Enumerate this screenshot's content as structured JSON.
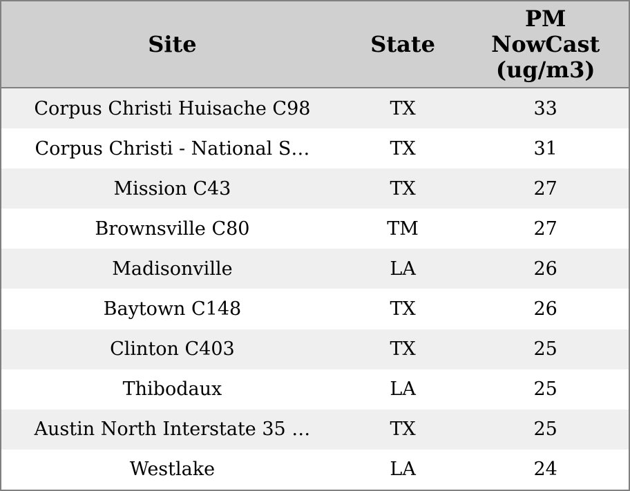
{
  "colors": {
    "header_bg": "#d0d0d0",
    "row_alt_bg": "#efefef",
    "row_bg": "#ffffff",
    "border": "#808080",
    "text": "#000000"
  },
  "table": {
    "columns": [
      {
        "key": "site",
        "label": "Site"
      },
      {
        "key": "state",
        "label": "State"
      },
      {
        "key": "pm",
        "label": "PM\nNowCast\n(ug/m3)"
      }
    ],
    "rows": [
      {
        "site": "Corpus Christi Huisache C98",
        "state": "TX",
        "pm": "33"
      },
      {
        "site": "Corpus Christi - National S…",
        "state": "TX",
        "pm": "31"
      },
      {
        "site": "Mission C43",
        "state": "TX",
        "pm": "27"
      },
      {
        "site": "Brownsville C80",
        "state": "TM",
        "pm": "27"
      },
      {
        "site": "Madisonville",
        "state": "LA",
        "pm": "26"
      },
      {
        "site": "Baytown C148",
        "state": "TX",
        "pm": "26"
      },
      {
        "site": "Clinton C403",
        "state": "TX",
        "pm": "25"
      },
      {
        "site": "Thibodaux",
        "state": "LA",
        "pm": "25"
      },
      {
        "site": "Austin North Interstate 35 …",
        "state": "TX",
        "pm": "25"
      },
      {
        "site": "Westlake",
        "state": "LA",
        "pm": "24"
      }
    ]
  },
  "chart_data": {
    "type": "table",
    "columns": [
      "Site",
      "State",
      "PM NowCast (ug/m3)"
    ],
    "rows": [
      [
        "Corpus Christi Huisache C98",
        "TX",
        33
      ],
      [
        "Corpus Christi - National S…",
        "TX",
        31
      ],
      [
        "Mission C43",
        "TX",
        27
      ],
      [
        "Brownsville C80",
        "TM",
        27
      ],
      [
        "Madisonville",
        "LA",
        26
      ],
      [
        "Baytown C148",
        "TX",
        26
      ],
      [
        "Clinton C403",
        "TX",
        25
      ],
      [
        "Thibodaux",
        "LA",
        25
      ],
      [
        "Austin North Interstate 35 …",
        "TX",
        25
      ],
      [
        "Westlake",
        "LA",
        24
      ]
    ],
    "sort": {
      "column": "PM NowCast (ug/m3)",
      "order": "descending"
    }
  }
}
